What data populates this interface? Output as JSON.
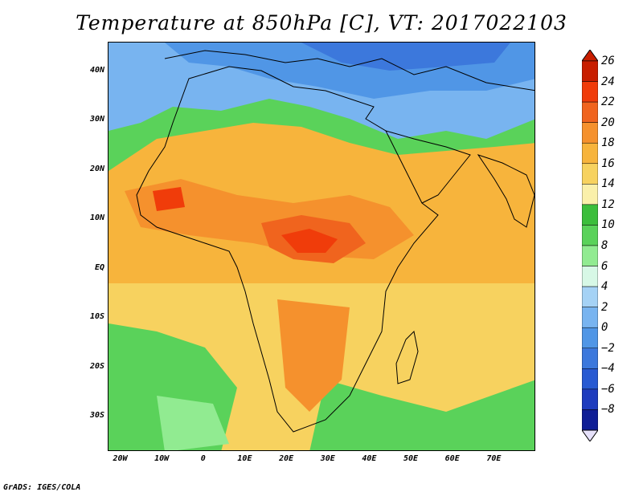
{
  "title": "Temperature at 850hPa [C], VT: 2017022103",
  "footer": "GrADS: IGES/COLA",
  "map": {
    "lon_range": [
      -23,
      80
    ],
    "lat_range": [
      -37,
      46
    ],
    "lat_ticks": [
      {
        "value": 40,
        "label": "40N"
      },
      {
        "value": 30,
        "label": "30N"
      },
      {
        "value": 20,
        "label": "20N"
      },
      {
        "value": 10,
        "label": "10N"
      },
      {
        "value": 0,
        "label": "EQ"
      },
      {
        "value": -10,
        "label": "10S"
      },
      {
        "value": -20,
        "label": "20S"
      },
      {
        "value": -30,
        "label": "30S"
      }
    ],
    "lon_ticks": [
      {
        "value": -20,
        "label": "20W"
      },
      {
        "value": -10,
        "label": "10W"
      },
      {
        "value": 0,
        "label": "0"
      },
      {
        "value": 10,
        "label": "10E"
      },
      {
        "value": 20,
        "label": "20E"
      },
      {
        "value": 30,
        "label": "30E"
      },
      {
        "value": 40,
        "label": "40E"
      },
      {
        "value": 50,
        "label": "50E"
      },
      {
        "value": 60,
        "label": "60E"
      },
      {
        "value": 70,
        "label": "70E"
      }
    ]
  },
  "colorbar": {
    "levels": [
      {
        "label": "26",
        "color": "#c81e00"
      },
      {
        "label": "24",
        "color": "#f03c0a"
      },
      {
        "label": "22",
        "color": "#f0641e"
      },
      {
        "label": "20",
        "color": "#f5912d"
      },
      {
        "label": "18",
        "color": "#f7b43c"
      },
      {
        "label": "16",
        "color": "#f7d25f"
      },
      {
        "label": "14",
        "color": "#faf0aa"
      },
      {
        "label": "12",
        "color": "#3cbe3c"
      },
      {
        "label": "10",
        "color": "#5ad25a"
      },
      {
        "label": "8",
        "color": "#91eb91"
      },
      {
        "label": "6",
        "color": "#d7f8e6"
      },
      {
        "label": "4",
        "color": "#a5d2f5"
      },
      {
        "label": "2",
        "color": "#78b4f0"
      },
      {
        "label": "0",
        "color": "#5096e6"
      },
      {
        "label": "−2",
        "color": "#3c78dc"
      },
      {
        "label": "−4",
        "color": "#285ad2"
      },
      {
        "label": "−6",
        "color": "#1e3cbe"
      },
      {
        "label": "−8",
        "color": "#0f1e96"
      }
    ],
    "below_color": "#e6e1fa",
    "above_color": "#c81e00"
  }
}
